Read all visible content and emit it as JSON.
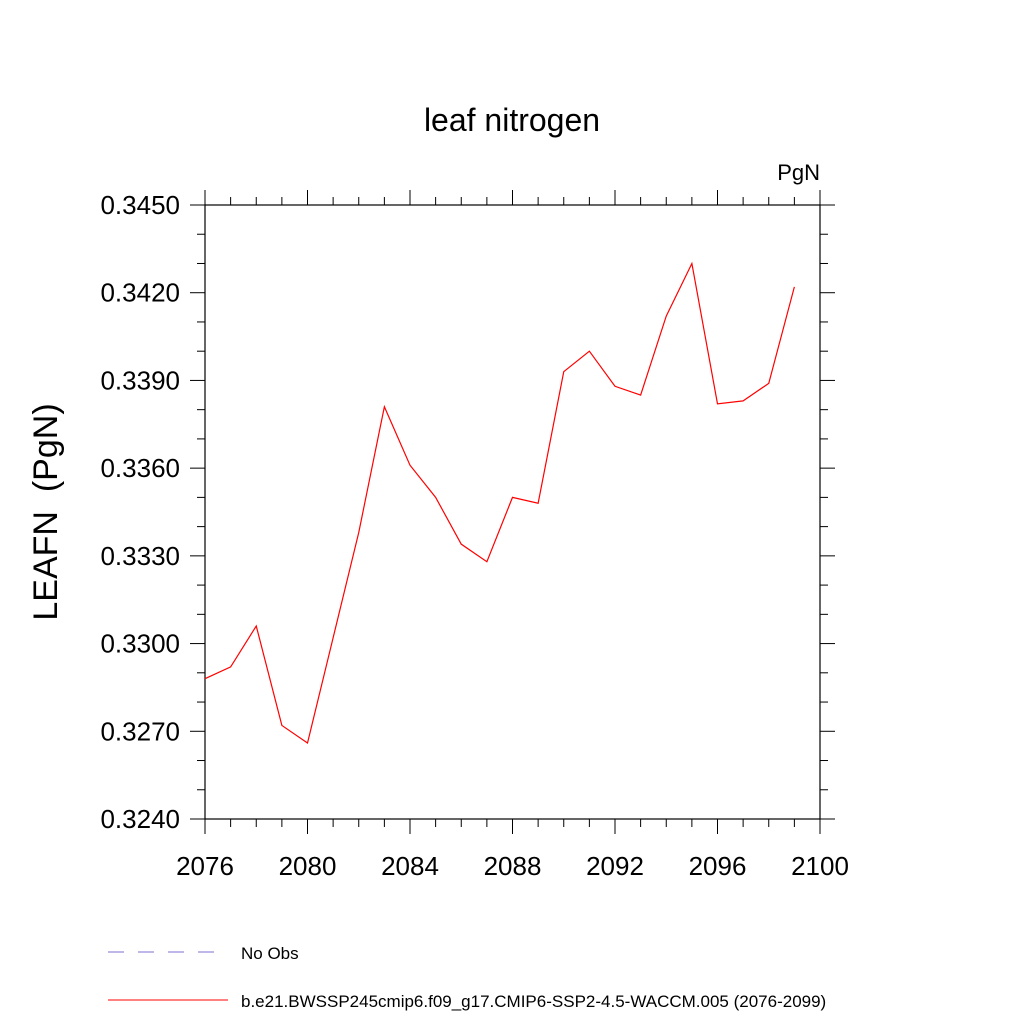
{
  "chart_data": {
    "type": "line",
    "title": "leaf nitrogen",
    "units_label": "PgN",
    "ylabel": "LEAFN  (PgN)",
    "xlabel": "",
    "xlim": [
      2076,
      2100
    ],
    "ylim": [
      0.324,
      0.345
    ],
    "x_ticks": [
      2076,
      2080,
      2084,
      2088,
      2092,
      2096,
      2100
    ],
    "x_tick_labels": [
      "2076",
      "2080",
      "2084",
      "2088",
      "2092",
      "2096",
      "2100"
    ],
    "y_ticks": [
      0.324,
      0.327,
      0.33,
      0.333,
      0.336,
      0.339,
      0.342,
      0.345
    ],
    "y_tick_labels": [
      "0.3240",
      "0.3270",
      "0.3300",
      "0.3330",
      "0.3360",
      "0.3390",
      "0.3420",
      "0.3450"
    ],
    "grid": false,
    "legend_position": "bottom",
    "series": [
      {
        "name": "b.e21.BWSSP245cmip6.f09_g17.CMIP6-SSP2-4.5-WACCM.005 (2076-2099)",
        "color": "#ff0000",
        "style": "solid",
        "x": [
          2076,
          2077,
          2078,
          2079,
          2080,
          2081,
          2082,
          2083,
          2084,
          2085,
          2086,
          2087,
          2088,
          2089,
          2090,
          2091,
          2092,
          2093,
          2094,
          2095,
          2096,
          2097,
          2098,
          2099
        ],
        "y": [
          0.3288,
          0.3292,
          0.3306,
          0.3272,
          0.3266,
          0.3302,
          0.3338,
          0.3381,
          0.3361,
          0.335,
          0.3334,
          0.3328,
          0.335,
          0.3348,
          0.3393,
          0.34,
          0.3388,
          0.3385,
          0.3412,
          0.343,
          0.3382,
          0.3383,
          0.3389,
          0.3422
        ]
      }
    ],
    "legend": [
      {
        "label": "No Obs",
        "color": "#7d6fd0",
        "style": "dashed"
      },
      {
        "label": "b.e21.BWSSP245cmip6.f09_g17.CMIP6-SSP2-4.5-WACCM.005 (2076-2099)",
        "color": "#ff0000",
        "style": "solid"
      }
    ]
  }
}
